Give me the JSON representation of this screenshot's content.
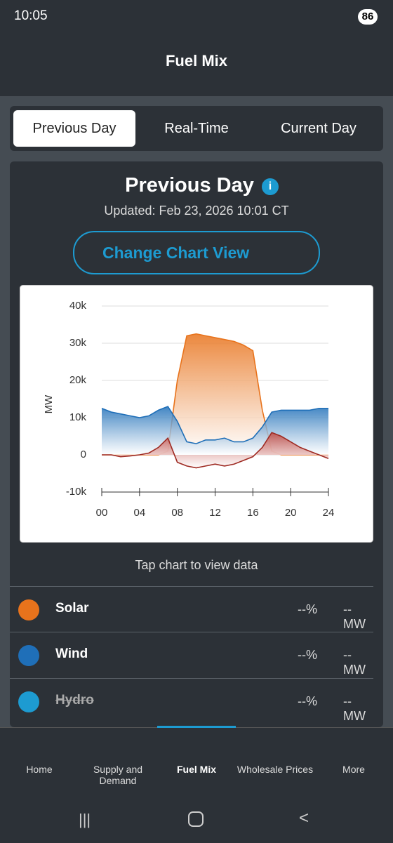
{
  "status_bar": {
    "time": "10:05",
    "battery": "86"
  },
  "header": {
    "title": "Fuel Mix"
  },
  "tabs": [
    "Previous Day",
    "Real-Time",
    "Current Day"
  ],
  "card": {
    "title": "Previous Day",
    "updated": "Updated: Feb 23, 2026 10:01 CT",
    "button": "Change Chart View",
    "hint": "Tap chart to view data"
  },
  "chart_data": {
    "type": "area",
    "ylabel": "MW",
    "x": [
      0,
      1,
      2,
      3,
      4,
      5,
      6,
      7,
      8,
      9,
      10,
      11,
      12,
      13,
      14,
      15,
      16,
      17,
      18,
      19,
      20,
      21,
      22,
      23,
      24
    ],
    "series": [
      {
        "name": "Solar",
        "color": "#e8731c",
        "values": [
          0,
          0,
          0,
          0,
          0,
          0,
          0,
          1000,
          20000,
          32000,
          32500,
          32000,
          31500,
          31000,
          30500,
          29500,
          28000,
          12000,
          1000,
          0,
          0,
          0,
          0,
          0,
          0
        ]
      },
      {
        "name": "Wind",
        "color": "#1f6fb8",
        "values": [
          12500,
          11500,
          11000,
          10500,
          10000,
          10500,
          12000,
          13000,
          9000,
          3500,
          3000,
          4000,
          4000,
          4500,
          3500,
          3500,
          4500,
          7500,
          11500,
          12000,
          12000,
          12000,
          12000,
          12500,
          12500
        ]
      },
      {
        "color": "#9e2a22",
        "values": [
          0,
          0,
          -500,
          -300,
          0,
          500,
          2000,
          4500,
          -2000,
          -3000,
          -3500,
          -3000,
          -2500,
          -3000,
          -2500,
          -1500,
          -500,
          2000,
          6000,
          5000,
          3500,
          2000,
          1000,
          0,
          -1000
        ]
      }
    ],
    "xlim": [
      0,
      24
    ],
    "xticks": [
      {
        "value": 0,
        "label": "00"
      },
      {
        "value": 4,
        "label": "04"
      },
      {
        "value": 8,
        "label": "08"
      },
      {
        "value": 12,
        "label": "12"
      },
      {
        "value": 16,
        "label": "16"
      },
      {
        "value": 20,
        "label": "20"
      },
      {
        "value": 24,
        "label": "24"
      }
    ],
    "ylim": [
      -10000,
      40000
    ],
    "yticks": [
      {
        "value": -10000,
        "label": "-10k"
      },
      {
        "value": 0,
        "label": "0"
      },
      {
        "value": 10000,
        "label": "10k"
      },
      {
        "value": 20000,
        "label": "20k"
      },
      {
        "value": 30000,
        "label": "30k"
      },
      {
        "value": 40000,
        "label": "40k"
      }
    ],
    "grid": true
  },
  "list": [
    {
      "label": "Solar",
      "percent": "--%",
      "mw": "--MW"
    },
    {
      "label": "Wind",
      "percent": "--%",
      "mw": "--MW"
    },
    {
      "label": "Hydro",
      "percent": "--%",
      "mw": "--MW"
    }
  ],
  "nav": [
    "Home",
    "Supply and Demand",
    "Fuel Mix",
    "Wholesale Prices",
    "More"
  ]
}
